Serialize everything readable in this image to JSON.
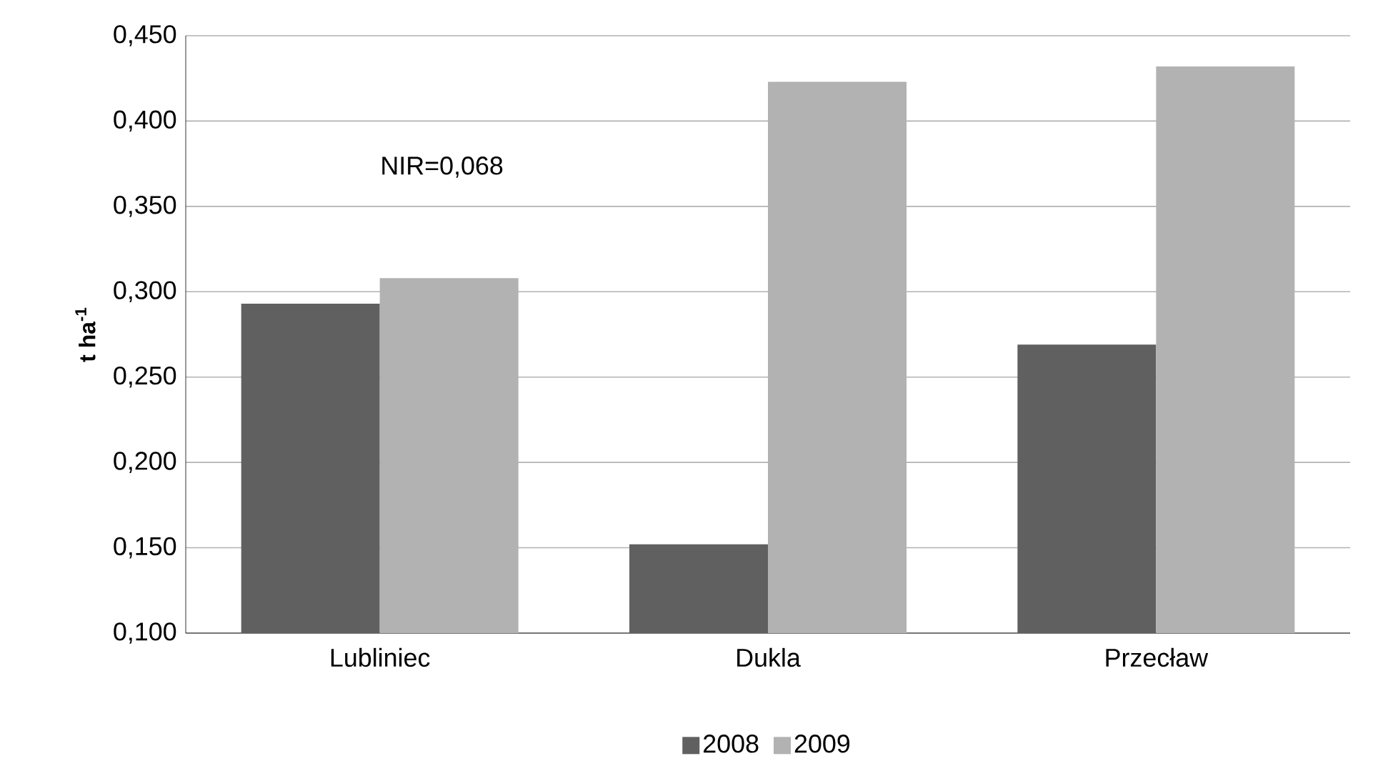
{
  "chart_data": {
    "type": "bar",
    "ylabel": "t ha$^{-1}$",
    "categories": [
      "Lubliniec",
      "Dukla",
      "Przecław"
    ],
    "series": [
      {
        "name": "2008",
        "color": "#606060",
        "values": [
          0.293,
          0.152,
          0.269
        ]
      },
      {
        "name": "2009",
        "color": "#b2b2b2",
        "values": [
          0.308,
          0.423,
          0.432
        ]
      }
    ],
    "ylim": [
      0.1,
      0.45
    ],
    "yticks": [
      {
        "value": 0.1,
        "label": "0,100"
      },
      {
        "value": 0.15,
        "label": "0,150"
      },
      {
        "value": 0.2,
        "label": "0,200"
      },
      {
        "value": 0.25,
        "label": "0,250"
      },
      {
        "value": 0.3,
        "label": "0,300"
      },
      {
        "value": 0.35,
        "label": "0,350"
      },
      {
        "value": 0.4,
        "label": "0,400"
      },
      {
        "value": 0.45,
        "label": "0,450"
      }
    ],
    "annotations": [
      "NIR=0,068"
    ],
    "grid": "y",
    "legend": "bottom"
  }
}
